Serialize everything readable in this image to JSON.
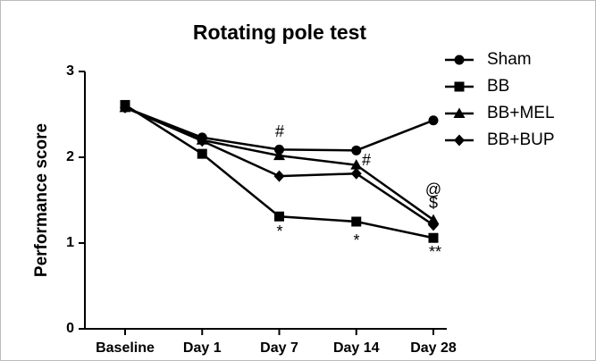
{
  "chart_data": {
    "type": "line",
    "title": "Rotating pole test",
    "ylabel": "Performance score",
    "categories": [
      "Baseline",
      "Day 1",
      "Day 7",
      "Day 14",
      "Day 28"
    ],
    "series": [
      {
        "name": "Sham",
        "color": "#000000",
        "marker": "circle",
        "values": [
          2.58,
          2.23,
          2.09,
          2.08,
          2.43
        ]
      },
      {
        "name": "BB",
        "color": "#000000",
        "marker": "square",
        "values": [
          2.61,
          2.04,
          1.31,
          1.25,
          1.06
        ]
      },
      {
        "name": "BB+MEL",
        "color": "#000000",
        "marker": "triangle",
        "values": [
          2.58,
          2.2,
          2.02,
          1.91,
          1.27
        ]
      },
      {
        "name": "BB+BUP",
        "color": "#000000",
        "marker": "diamond",
        "values": [
          2.58,
          2.19,
          1.78,
          1.81,
          1.21
        ]
      }
    ],
    "annotations": [
      "#",
      "#",
      "@",
      "$",
      "*",
      "*",
      "**"
    ],
    "ylim": [
      0,
      3
    ],
    "yticks": [
      0,
      1,
      2,
      3
    ],
    "legend": "top-right"
  }
}
